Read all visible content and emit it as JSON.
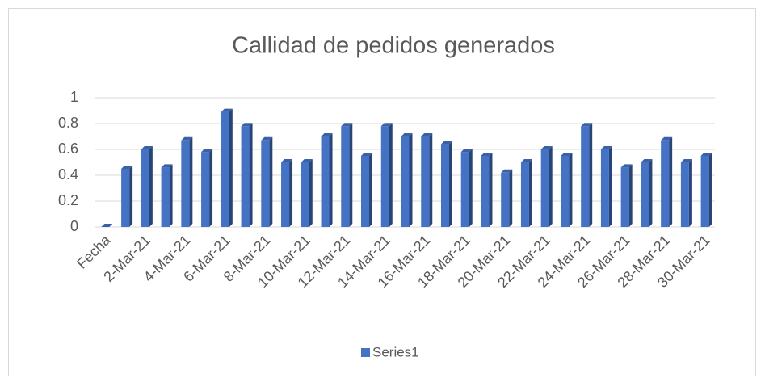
{
  "chart_data": {
    "type": "bar",
    "title": "Callidad de pedidos generados",
    "categories": [
      "Fecha",
      null,
      "2-Mar-21",
      null,
      "4-Mar-21",
      null,
      "6-Mar-21",
      null,
      "8-Mar-21",
      null,
      "10-Mar-21",
      null,
      "12-Mar-21",
      null,
      "14-Mar-21",
      null,
      "16-Mar-21",
      null,
      "18-Mar-21",
      null,
      "20-Mar-21",
      null,
      "22-Mar-21",
      null,
      "24-Mar-21",
      null,
      "26-Mar-21",
      null,
      "28-Mar-21",
      null,
      "30-Mar-21"
    ],
    "series": [
      {
        "name": "Series1",
        "color": "#4472c4",
        "values": [
          0,
          0.45,
          0.6,
          0.46,
          0.67,
          0.58,
          0.89,
          0.78,
          0.67,
          0.5,
          0.5,
          0.7,
          0.78,
          0.55,
          0.78,
          0.7,
          0.7,
          0.64,
          0.58,
          0.55,
          0.42,
          0.5,
          0.6,
          0.55,
          0.78,
          0.6,
          0.46,
          0.5,
          0.67,
          0.5,
          0.55
        ]
      }
    ],
    "ylim": [
      0,
      1
    ],
    "yticks": [
      0,
      0.2,
      0.4,
      0.6,
      0.8,
      1
    ],
    "grid": true,
    "legend": "bottom"
  }
}
